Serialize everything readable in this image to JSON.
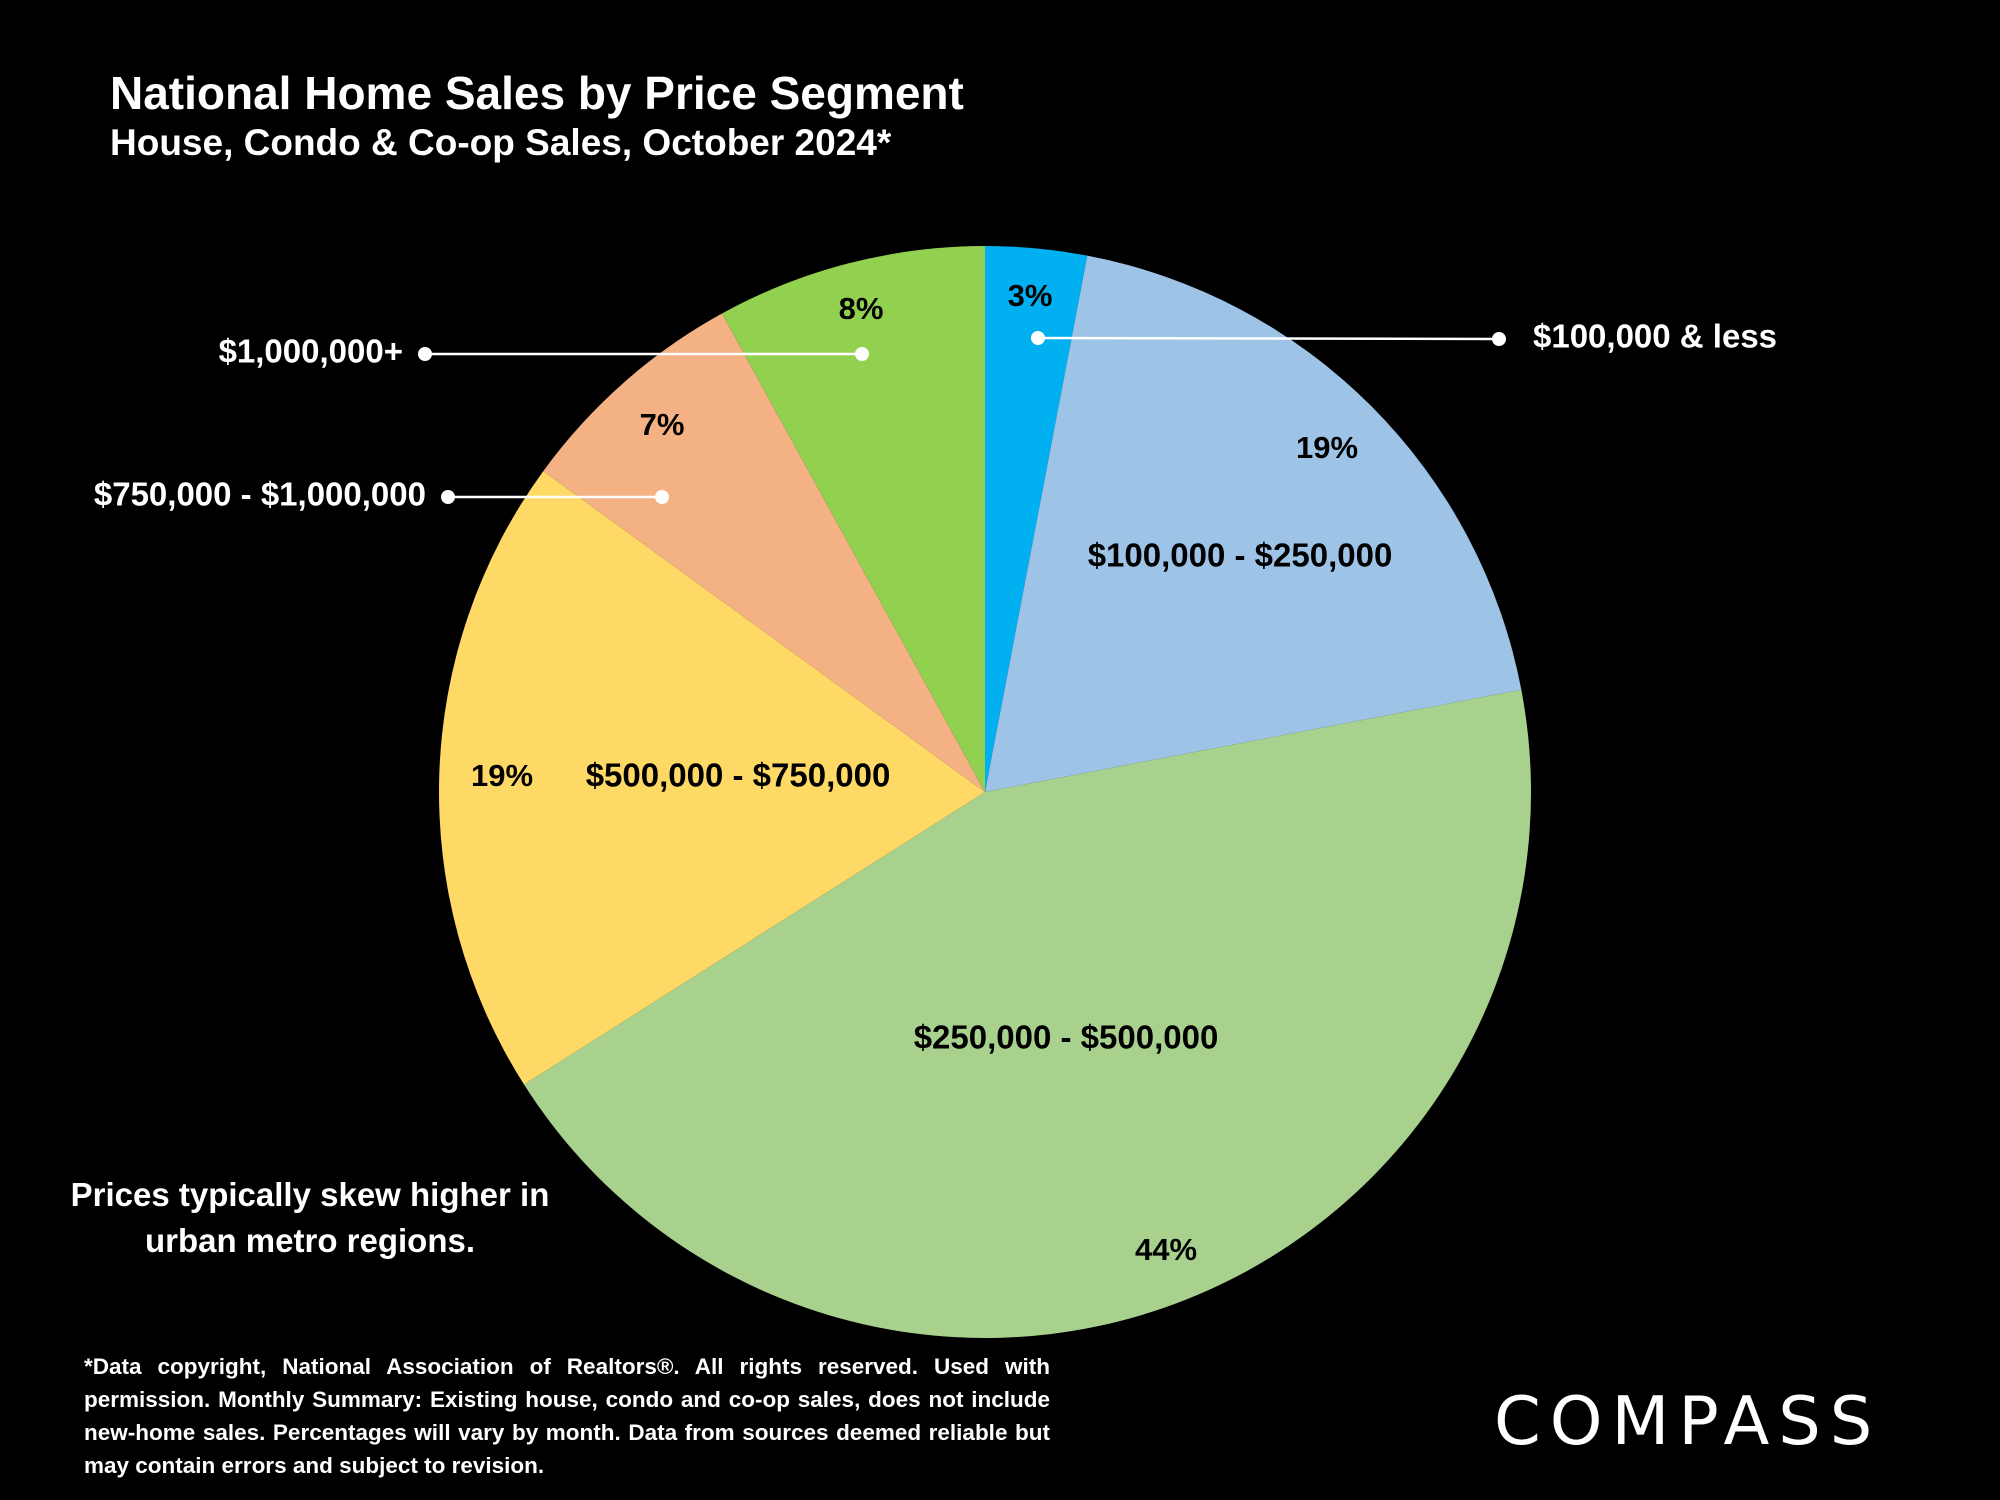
{
  "title": "National Home Sales by Price Segment",
  "subtitle": "House, Condo & Co-op Sales, October 2024*",
  "note": "Prices typically skew higher in urban metro regions.",
  "footnote": "*Data copyright, National Association of Realtors®. All rights reserved. Used with permission. Monthly Summary: Existing house, condo and co-op sales, does not include new-home sales. Percentages will vary by month. Data from sources deemed reliable but may contain errors and subject to revision.",
  "logo": "COMPASS",
  "chart_data": {
    "type": "pie",
    "title": "National Home Sales by Price Segment",
    "subtitle": "House, Condo & Co-op Sales, October 2024*",
    "start_angle": "12 o'clock",
    "direction": "clockwise",
    "slices": [
      {
        "label": "$100,000 & less",
        "value": 3,
        "value_label": "3%",
        "color": "#00B0F0",
        "label_placement": "callout-right"
      },
      {
        "label": "$100,000 - $250,000",
        "value": 19,
        "value_label": "19%",
        "color": "#9DC3E6",
        "label_placement": "inside"
      },
      {
        "label": "$250,000 - $500,000",
        "value": 44,
        "value_label": "44%",
        "color": "#A9D18E",
        "label_placement": "inside"
      },
      {
        "label": "$500,000 - $750,000",
        "value": 19,
        "value_label": "19%",
        "color": "#FFD966",
        "label_placement": "inside"
      },
      {
        "label": "$750,000 - $1,000,000",
        "value": 7,
        "value_label": "7%",
        "color": "#F4B183",
        "label_placement": "callout-left"
      },
      {
        "label": "$1,000,000+",
        "value": 8,
        "value_label": "8%",
        "color": "#92D050",
        "label_placement": "callout-left"
      }
    ]
  }
}
